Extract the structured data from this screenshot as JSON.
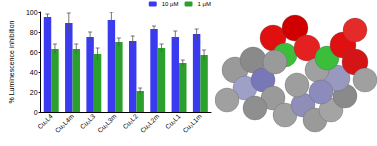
{
  "chart_data": {
    "type": "bar",
    "categories": [
      "Cu₂L4",
      "Cu₂L4m",
      "Cu₂L3",
      "Cu₂L3m",
      "Cu₂L2",
      "Cu₂L2m",
      "Cu₂L1",
      "Cu₂L1m"
    ],
    "series": [
      {
        "name": "10 µM",
        "color": "#3a3af0",
        "values": [
          95,
          89,
          75,
          92,
          71,
          83,
          75,
          78
        ],
        "errors": [
          3,
          10,
          5,
          8,
          5,
          3,
          6,
          5
        ]
      },
      {
        "name": "1 µM",
        "color": "#2ca02c",
        "values": [
          63,
          63,
          58,
          70,
          21,
          64,
          49,
          57
        ],
        "errors": [
          5,
          5,
          6,
          4,
          3,
          4,
          3,
          5
        ]
      }
    ],
    "y_label": "% Luminescence inhibition",
    "ylim": [
      0,
      100
    ],
    "yticks": [
      0,
      20,
      40,
      60,
      80,
      100
    ],
    "legend": "upper right",
    "grid": false
  }
}
